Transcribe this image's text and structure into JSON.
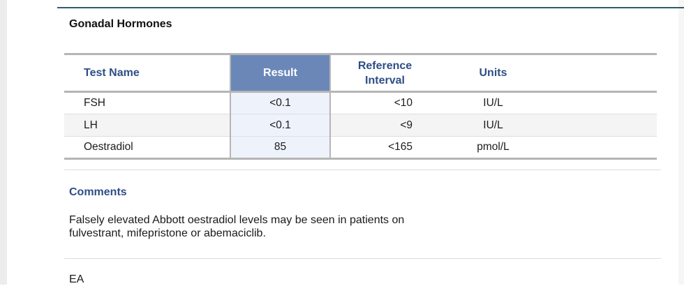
{
  "section": {
    "title": "Gonadal Hormones"
  },
  "table": {
    "headers": {
      "test_name": "Test Name",
      "result": "Result",
      "reference_line1": "Reference",
      "reference_line2": "Interval",
      "units": "Units"
    },
    "rows": [
      {
        "test": "FSH",
        "result": "<0.1",
        "reference": "<10",
        "units": "IU/L"
      },
      {
        "test": "LH",
        "result": "<0.1",
        "reference": "<9",
        "units": "IU/L"
      },
      {
        "test": "Oestradiol",
        "result": "85",
        "reference": "<165",
        "units": "pmol/L"
      }
    ]
  },
  "comments": {
    "heading": "Comments",
    "line1": "Falsely elevated Abbott oestradiol levels may be seen in patients on",
    "line2": "fulvestrant, mifepristone or abemaciclib."
  },
  "footer": {
    "initials": "EA"
  },
  "colors": {
    "header_text": "#2e4e86",
    "result_header_bg": "#6a87b8",
    "result_cell_bg": "#eef2fb",
    "top_rule": "#2f5d68"
  }
}
